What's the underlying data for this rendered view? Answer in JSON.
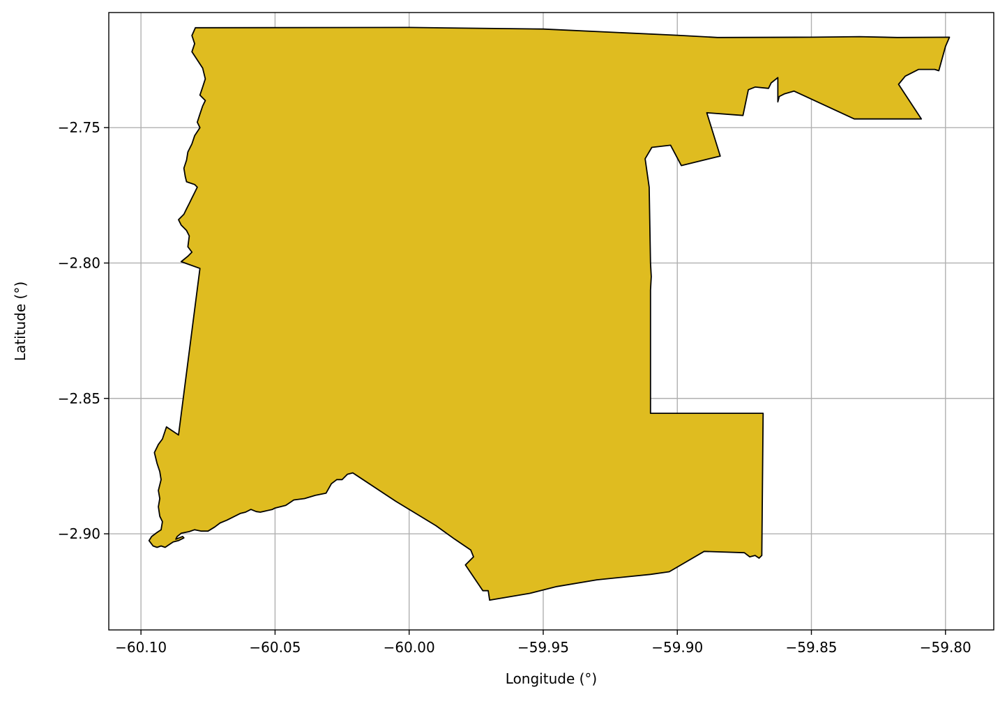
{
  "chart_data": {
    "type": "map",
    "xlabel": "Longitude (°)",
    "ylabel": "Latitude (°)",
    "xlim": [
      -60.112,
      -59.782
    ],
    "ylim": [
      -2.9355,
      -2.7075
    ],
    "grid": true,
    "x_ticks": [
      -60.1,
      -60.05,
      -60.0,
      -59.95,
      -59.9,
      -59.85,
      -59.8
    ],
    "x_tick_labels": [
      "−60.10",
      "−60.05",
      "−60.00",
      "−59.95",
      "−59.90",
      "−59.85",
      "−59.80"
    ],
    "y_ticks": [
      -2.75,
      -2.8,
      -2.85,
      -2.9
    ],
    "y_tick_labels": [
      "−2.75",
      "−2.80",
      "−2.85",
      "−2.90"
    ],
    "fill_color": "#dfbc20",
    "edge_color": "#000000",
    "boundary": [
      [
        -60.0797,
        -2.7131
      ],
      [
        -60.0,
        -2.713
      ],
      [
        -59.95,
        -2.7136
      ],
      [
        -59.9,
        -2.7159
      ],
      [
        -59.885,
        -2.7167
      ],
      [
        -59.85,
        -2.7166
      ],
      [
        -59.832,
        -2.7164
      ],
      [
        -59.818,
        -2.7167
      ],
      [
        -59.7985,
        -2.7166
      ],
      [
        -59.8,
        -2.72
      ],
      [
        -59.8025,
        -2.729
      ],
      [
        -59.804,
        -2.7285
      ],
      [
        -59.81,
        -2.7285
      ],
      [
        -59.815,
        -2.731
      ],
      [
        -59.8175,
        -2.734
      ],
      [
        -59.809,
        -2.7468
      ],
      [
        -59.834,
        -2.7468
      ],
      [
        -59.8565,
        -2.7365
      ],
      [
        -59.86,
        -2.7375
      ],
      [
        -59.862,
        -2.7385
      ],
      [
        -59.8625,
        -2.7405
      ],
      [
        -59.8625,
        -2.7315
      ],
      [
        -59.865,
        -2.7335
      ],
      [
        -59.866,
        -2.7355
      ],
      [
        -59.871,
        -2.735
      ],
      [
        -59.8735,
        -2.736
      ],
      [
        -59.8755,
        -2.7455
      ],
      [
        -59.889,
        -2.7445
      ],
      [
        -59.884,
        -2.7605
      ],
      [
        -59.8985,
        -2.764
      ],
      [
        -59.9025,
        -2.7565
      ],
      [
        -59.9095,
        -2.7573
      ],
      [
        -59.912,
        -2.7615
      ],
      [
        -59.9105,
        -2.772
      ],
      [
        -59.91,
        -2.8
      ],
      [
        -59.9097,
        -2.805
      ],
      [
        -59.91,
        -2.81
      ],
      [
        -59.91,
        -2.8555
      ],
      [
        -59.868,
        -2.8555
      ],
      [
        -59.8685,
        -2.908
      ],
      [
        -59.8695,
        -2.909
      ],
      [
        -59.871,
        -2.908
      ],
      [
        -59.873,
        -2.9085
      ],
      [
        -59.875,
        -2.907
      ],
      [
        -59.89,
        -2.9065
      ],
      [
        -59.903,
        -2.914
      ],
      [
        -59.91,
        -2.915
      ],
      [
        -59.93,
        -2.917
      ],
      [
        -59.945,
        -2.9195
      ],
      [
        -59.955,
        -2.922
      ],
      [
        -59.97,
        -2.9245
      ],
      [
        -59.9705,
        -2.921
      ],
      [
        -59.9725,
        -2.921
      ],
      [
        -59.979,
        -2.9115
      ],
      [
        -59.976,
        -2.9085
      ],
      [
        -59.977,
        -2.906
      ],
      [
        -59.983,
        -2.902
      ],
      [
        -59.99,
        -2.897
      ],
      [
        -60.005,
        -2.888
      ],
      [
        -60.021,
        -2.8775
      ],
      [
        -60.023,
        -2.878
      ],
      [
        -60.025,
        -2.88
      ],
      [
        -60.027,
        -2.88
      ],
      [
        -60.029,
        -2.8815
      ],
      [
        -60.031,
        -2.885
      ],
      [
        -60.035,
        -2.8858
      ],
      [
        -60.039,
        -2.887
      ],
      [
        -60.043,
        -2.8875
      ],
      [
        -60.046,
        -2.8895
      ],
      [
        -60.05,
        -2.8905
      ],
      [
        -60.051,
        -2.891
      ],
      [
        -60.0555,
        -2.892
      ],
      [
        -60.057,
        -2.8918
      ],
      [
        -60.059,
        -2.891
      ],
      [
        -60.061,
        -2.892
      ],
      [
        -60.063,
        -2.8925
      ],
      [
        -60.065,
        -2.8935
      ],
      [
        -60.068,
        -2.895
      ],
      [
        -60.0705,
        -2.896
      ],
      [
        -60.0725,
        -2.8975
      ],
      [
        -60.075,
        -2.899
      ],
      [
        -60.0775,
        -2.899
      ],
      [
        -60.08,
        -2.8985
      ],
      [
        -60.082,
        -2.8992
      ],
      [
        -60.085,
        -2.8998
      ],
      [
        -60.0865,
        -2.901
      ],
      [
        -60.087,
        -2.902
      ],
      [
        -60.0845,
        -2.901
      ],
      [
        -60.084,
        -2.9015
      ],
      [
        -60.086,
        -2.9025
      ],
      [
        -60.088,
        -2.903
      ],
      [
        -60.0895,
        -2.904
      ],
      [
        -60.091,
        -2.905
      ],
      [
        -60.0925,
        -2.9045
      ],
      [
        -60.094,
        -2.905
      ],
      [
        -60.0955,
        -2.9045
      ],
      [
        -60.097,
        -2.9025
      ],
      [
        -60.096,
        -2.901
      ],
      [
        -60.094,
        -2.8995
      ],
      [
        -60.0925,
        -2.8985
      ],
      [
        -60.092,
        -2.8955
      ],
      [
        -60.093,
        -2.8935
      ],
      [
        -60.0935,
        -2.89
      ],
      [
        -60.093,
        -2.887
      ],
      [
        -60.0935,
        -2.884
      ],
      [
        -60.0925,
        -2.88
      ],
      [
        -60.093,
        -2.877
      ],
      [
        -60.094,
        -2.874
      ],
      [
        -60.095,
        -2.87
      ],
      [
        -60.0935,
        -2.867
      ],
      [
        -60.092,
        -2.865
      ],
      [
        -60.0905,
        -2.8605
      ],
      [
        -60.086,
        -2.8635
      ],
      [
        -60.078,
        -2.802
      ],
      [
        -60.085,
        -2.7995
      ],
      [
        -60.0825,
        -2.7975
      ],
      [
        -60.081,
        -2.796
      ],
      [
        -60.0825,
        -2.794
      ],
      [
        -60.082,
        -2.79
      ],
      [
        -60.083,
        -2.788
      ],
      [
        -60.085,
        -2.786
      ],
      [
        -60.086,
        -2.784
      ],
      [
        -60.084,
        -2.782
      ],
      [
        -60.083,
        -2.78
      ],
      [
        -60.082,
        -2.778
      ],
      [
        -60.081,
        -2.776
      ],
      [
        -60.08,
        -2.774
      ],
      [
        -60.079,
        -2.772
      ],
      [
        -60.08,
        -2.771
      ],
      [
        -60.083,
        -2.77
      ],
      [
        -60.0835,
        -2.768
      ],
      [
        -60.084,
        -2.765
      ],
      [
        -60.083,
        -2.762
      ],
      [
        -60.0825,
        -2.759
      ],
      [
        -60.081,
        -2.756
      ],
      [
        -60.08,
        -2.753
      ],
      [
        -60.078,
        -2.75
      ],
      [
        -60.079,
        -2.748
      ],
      [
        -60.078,
        -2.745
      ],
      [
        -60.077,
        -2.742
      ],
      [
        -60.076,
        -2.74
      ],
      [
        -60.078,
        -2.738
      ],
      [
        -60.077,
        -2.735
      ],
      [
        -60.076,
        -2.732
      ],
      [
        -60.077,
        -2.728
      ],
      [
        -60.079,
        -2.725
      ],
      [
        -60.081,
        -2.722
      ],
      [
        -60.08,
        -2.719
      ],
      [
        -60.081,
        -2.716
      ],
      [
        -60.0797,
        -2.7131
      ]
    ]
  }
}
